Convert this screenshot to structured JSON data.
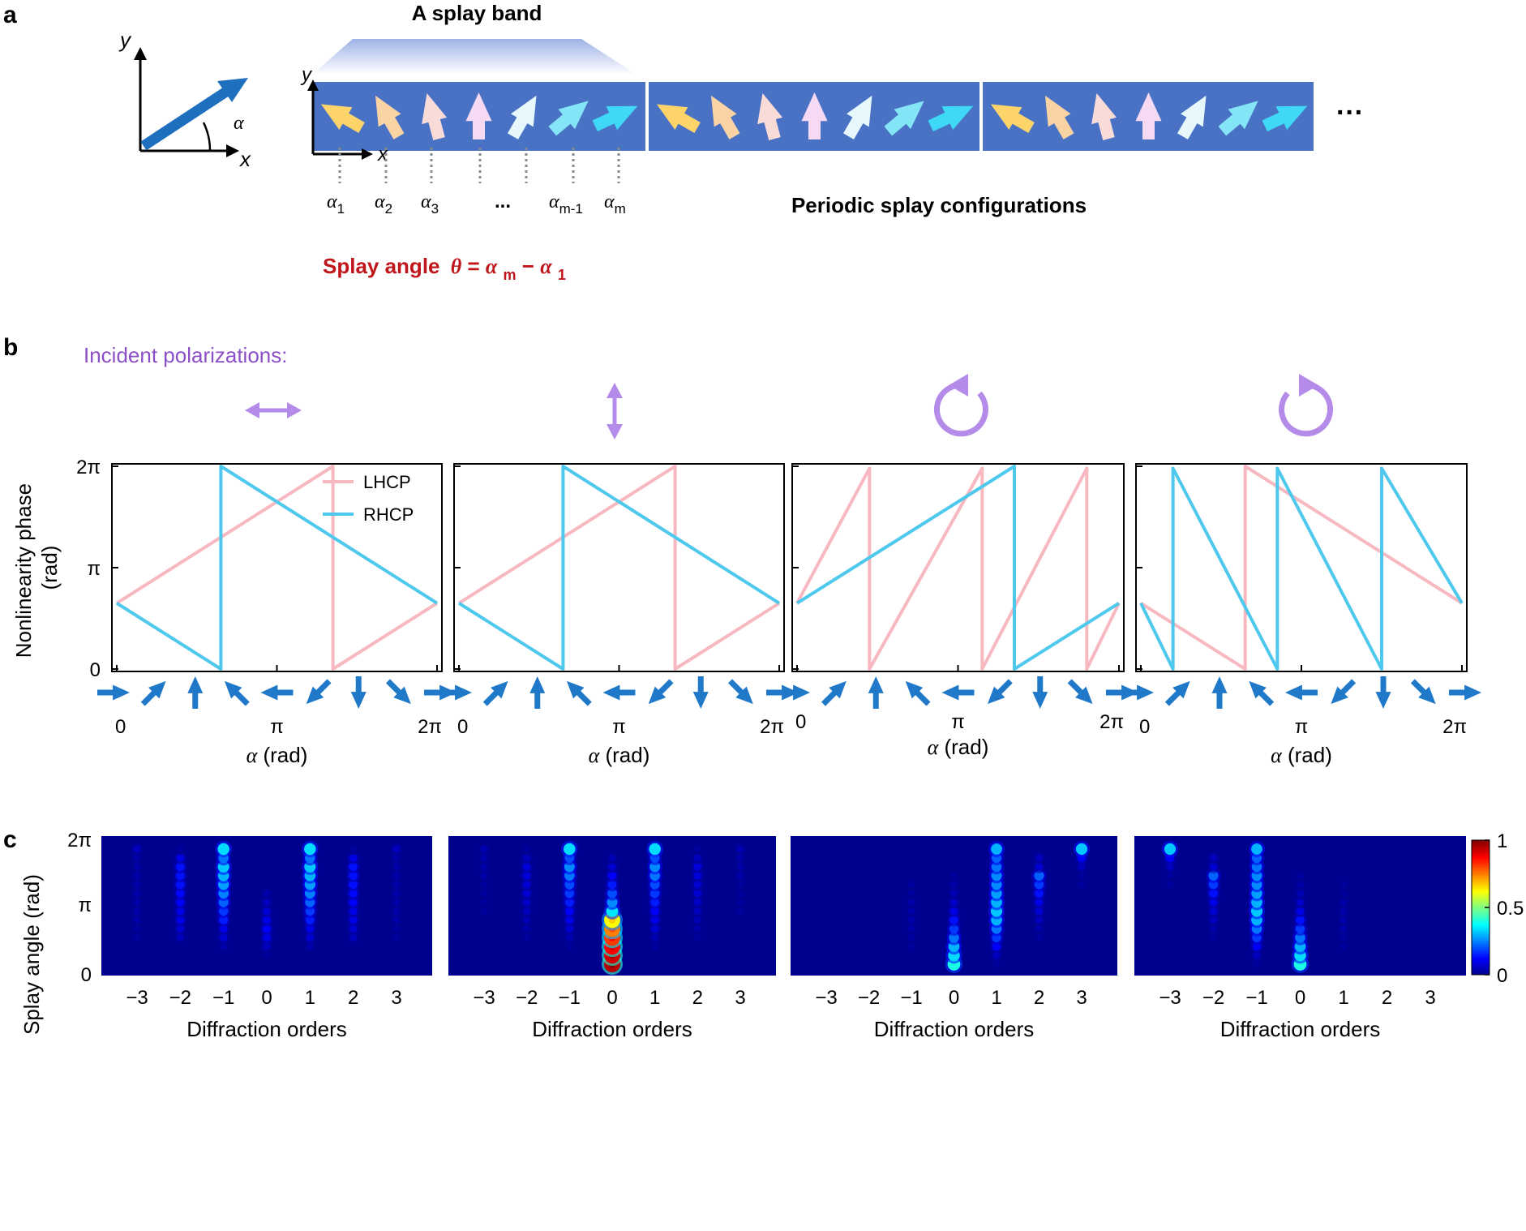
{
  "panel_labels": [
    "a",
    "b",
    "c"
  ],
  "panel_a": {
    "band_title": "A splay band",
    "period_caption": "Periodic splay configurations",
    "ellipsis": "···",
    "axis_inset": {
      "x": "x",
      "y": "y",
      "angle": "α"
    },
    "band_axes": {
      "x": "x",
      "y": "y"
    },
    "alpha_labels": [
      {
        "sym": "α",
        "sub": "1"
      },
      {
        "sym": "α",
        "sub": "2"
      },
      {
        "sym": "α",
        "sub": "3"
      },
      {
        "sym": "...",
        "sub": ""
      },
      {
        "sym": "α",
        "sub": "m-1"
      },
      {
        "sym": "α",
        "sub": "m"
      }
    ],
    "splay_eq": {
      "lead": "Splay angle",
      "theta": "θ",
      "eq": " = ",
      "a1": "α",
      "s1": "m",
      "minus": " − ",
      "a2": "α",
      "s2": "1"
    },
    "arrow_colors": [
      "#fcd46a",
      "#f9d3a3",
      "#f9dcd8",
      "#f6d9f3",
      "#e7f8fc",
      "#84e5f6",
      "#3fd8f6"
    ],
    "band_color": "#4a72c4"
  },
  "panel_b": {
    "incident_title": "Incident polarizations:",
    "polarization_icons": [
      "horizontal-linear",
      "vertical-linear",
      "counterclockwise-circular",
      "clockwise-circular"
    ],
    "ylabel_line1": "Nonlinearity phase",
    "ylabel_line2": "(rad)",
    "yticks": [
      "0",
      "π",
      "2π"
    ],
    "xlabel": "α (rad)",
    "xticks": [
      "0",
      "π",
      "2π"
    ],
    "legend": [
      "LHCP",
      "RHCP"
    ],
    "colors": {
      "LHCP": "#f7b8c0",
      "RHCP": "#4fc8ee",
      "arrows": "#1f78c8",
      "polarization": "#b48be8"
    }
  },
  "panel_c": {
    "ylabel": "Splay angle (rad)",
    "yticks": [
      "0",
      "π",
      "2π"
    ],
    "xlabel": "Diffraction orders",
    "xticks": [
      "−3",
      "−2",
      "−1",
      "0",
      "1",
      "2",
      "3"
    ],
    "colorbar_ticks": [
      "0",
      "0.5",
      "1"
    ],
    "background": "#00008f"
  },
  "chart_data": [
    {
      "type": "line",
      "panel": "b1",
      "x_unit": "rad (multiples of π)",
      "y_unit": "rad (multiples of π)",
      "xlim": [
        0,
        2
      ],
      "ylim": [
        0,
        2
      ],
      "series": [
        {
          "name": "LHCP",
          "x": [
            0,
            1.35,
            1.35,
            2
          ],
          "y": [
            0.65,
            2,
            0,
            0.65
          ]
        },
        {
          "name": "RHCP",
          "x": [
            0,
            0.65,
            0.65,
            2
          ],
          "y": [
            0.65,
            0,
            2,
            0.65
          ]
        }
      ]
    },
    {
      "type": "line",
      "panel": "b2",
      "x_unit": "rad (multiples of π)",
      "y_unit": "rad (multiples of π)",
      "xlim": [
        0,
        2
      ],
      "ylim": [
        0,
        2
      ],
      "series": [
        {
          "name": "LHCP",
          "x": [
            0,
            1.35,
            1.35,
            2
          ],
          "y": [
            0.65,
            2,
            0,
            0.65
          ]
        },
        {
          "name": "RHCP",
          "x": [
            0,
            0.65,
            0.65,
            2
          ],
          "y": [
            0.65,
            0,
            2,
            0.65
          ]
        }
      ]
    },
    {
      "type": "line",
      "panel": "b3",
      "x_unit": "rad (multiples of π)",
      "y_unit": "rad (multiples of π)",
      "xlim": [
        0,
        2
      ],
      "ylim": [
        0,
        2
      ],
      "series": [
        {
          "name": "LHCP",
          "x": [
            0,
            0.45,
            0.45,
            1.15,
            1.15,
            1.8,
            1.8,
            2
          ],
          "y": [
            0.65,
            1.98,
            0,
            1.98,
            0,
            1.98,
            0,
            0.65
          ]
        },
        {
          "name": "RHCP",
          "x": [
            0,
            1.35,
            1.35,
            2
          ],
          "y": [
            0.65,
            2,
            0,
            0.65
          ]
        }
      ]
    },
    {
      "type": "line",
      "panel": "b4",
      "x_unit": "rad (multiples of π)",
      "y_unit": "rad (multiples of π)",
      "xlim": [
        0,
        2
      ],
      "ylim": [
        0,
        2
      ],
      "series": [
        {
          "name": "LHCP",
          "x": [
            0,
            0.65,
            0.65,
            2
          ],
          "y": [
            0.65,
            0,
            2,
            0.65
          ]
        },
        {
          "name": "RHCP",
          "x": [
            0,
            0.2,
            0.2,
            0.85,
            0.85,
            1.5,
            1.5,
            2
          ],
          "y": [
            0.65,
            0,
            1.98,
            0,
            1.98,
            0,
            1.98,
            0.65
          ]
        }
      ]
    },
    {
      "type": "heatmap",
      "panel": "c1",
      "x_values": [
        -3,
        -2,
        -1,
        0,
        1,
        2,
        3
      ],
      "y_unit": "rad (multiples of π)",
      "ylim": [
        0,
        2
      ],
      "rows": 14,
      "intensity_rows_bottom_to_top": [
        [
          0.02,
          0.02,
          0.02,
          0.02,
          0.02,
          0.02,
          0.02
        ],
        [
          0.02,
          0.02,
          0.02,
          0.03,
          0.02,
          0.02,
          0.02
        ],
        [
          0.02,
          0.02,
          0.04,
          0.06,
          0.04,
          0.02,
          0.02
        ],
        [
          0.03,
          0.06,
          0.08,
          0.1,
          0.08,
          0.06,
          0.03
        ],
        [
          0.03,
          0.08,
          0.1,
          0.12,
          0.1,
          0.08,
          0.03
        ],
        [
          0.04,
          0.1,
          0.15,
          0.1,
          0.15,
          0.1,
          0.04
        ],
        [
          0.04,
          0.1,
          0.18,
          0.08,
          0.18,
          0.1,
          0.04
        ],
        [
          0.04,
          0.12,
          0.22,
          0.06,
          0.22,
          0.12,
          0.04
        ],
        [
          0.04,
          0.13,
          0.25,
          0.04,
          0.25,
          0.13,
          0.04
        ],
        [
          0.04,
          0.14,
          0.28,
          0.02,
          0.28,
          0.14,
          0.04
        ],
        [
          0.04,
          0.14,
          0.3,
          0.02,
          0.3,
          0.14,
          0.04
        ],
        [
          0.04,
          0.14,
          0.32,
          0.02,
          0.32,
          0.14,
          0.04
        ],
        [
          0.04,
          0.1,
          0.24,
          0.02,
          0.24,
          0.1,
          0.04
        ],
        [
          0.06,
          0.03,
          0.34,
          0.02,
          0.34,
          0.03,
          0.06
        ]
      ]
    },
    {
      "type": "heatmap",
      "panel": "c2",
      "x_values": [
        -3,
        -2,
        -1,
        0,
        1,
        2,
        3
      ],
      "y_unit": "rad (multiples of π)",
      "ylim": [
        0,
        2
      ],
      "rows": 14,
      "intensity_rows_bottom_to_top": [
        [
          0.01,
          0.01,
          0.01,
          0.95,
          0.01,
          0.01,
          0.01
        ],
        [
          0.01,
          0.01,
          0.02,
          0.92,
          0.02,
          0.01,
          0.01
        ],
        [
          0.01,
          0.02,
          0.03,
          0.88,
          0.03,
          0.02,
          0.01
        ],
        [
          0.02,
          0.03,
          0.05,
          0.82,
          0.05,
          0.03,
          0.02
        ],
        [
          0.02,
          0.04,
          0.08,
          0.75,
          0.08,
          0.04,
          0.02
        ],
        [
          0.02,
          0.05,
          0.1,
          0.62,
          0.1,
          0.05,
          0.02
        ],
        [
          0.03,
          0.06,
          0.12,
          0.35,
          0.12,
          0.06,
          0.03
        ],
        [
          0.03,
          0.07,
          0.15,
          0.26,
          0.15,
          0.07,
          0.03
        ],
        [
          0.03,
          0.08,
          0.18,
          0.2,
          0.18,
          0.08,
          0.03
        ],
        [
          0.03,
          0.08,
          0.2,
          0.15,
          0.2,
          0.08,
          0.03
        ],
        [
          0.04,
          0.09,
          0.24,
          0.12,
          0.24,
          0.09,
          0.04
        ],
        [
          0.04,
          0.09,
          0.26,
          0.08,
          0.26,
          0.09,
          0.04
        ],
        [
          0.04,
          0.06,
          0.2,
          0.05,
          0.2,
          0.06,
          0.04
        ],
        [
          0.05,
          0.03,
          0.34,
          0.02,
          0.34,
          0.03,
          0.05
        ]
      ]
    },
    {
      "type": "heatmap",
      "panel": "c3",
      "x_values": [
        -3,
        -2,
        -1,
        0,
        1,
        2,
        3
      ],
      "y_unit": "rad (multiples of π)",
      "ylim": [
        0,
        2
      ],
      "rows": 14,
      "intensity_rows_bottom_to_top": [
        [
          0.01,
          0.01,
          0.02,
          0.4,
          0.03,
          0.01,
          0.01
        ],
        [
          0.01,
          0.01,
          0.02,
          0.34,
          0.06,
          0.01,
          0.01
        ],
        [
          0.01,
          0.01,
          0.03,
          0.3,
          0.12,
          0.02,
          0.01
        ],
        [
          0.01,
          0.02,
          0.03,
          0.24,
          0.18,
          0.03,
          0.01
        ],
        [
          0.01,
          0.02,
          0.04,
          0.18,
          0.24,
          0.04,
          0.01
        ],
        [
          0.01,
          0.02,
          0.04,
          0.14,
          0.3,
          0.06,
          0.02
        ],
        [
          0.01,
          0.02,
          0.04,
          0.1,
          0.32,
          0.08,
          0.02
        ],
        [
          0.01,
          0.02,
          0.04,
          0.07,
          0.3,
          0.1,
          0.02
        ],
        [
          0.01,
          0.02,
          0.03,
          0.05,
          0.28,
          0.14,
          0.02
        ],
        [
          0.01,
          0.02,
          0.03,
          0.04,
          0.26,
          0.18,
          0.03
        ],
        [
          0.01,
          0.01,
          0.02,
          0.03,
          0.26,
          0.22,
          0.03
        ],
        [
          0.01,
          0.01,
          0.02,
          0.02,
          0.24,
          0.08,
          0.06
        ],
        [
          0.01,
          0.01,
          0.01,
          0.02,
          0.22,
          0.06,
          0.12
        ],
        [
          0.01,
          0.01,
          0.01,
          0.01,
          0.3,
          0.02,
          0.32
        ]
      ]
    },
    {
      "type": "heatmap",
      "panel": "c4",
      "x_values": [
        -3,
        -2,
        -1,
        0,
        1,
        2,
        3
      ],
      "y_unit": "rad (multiples of π)",
      "ylim": [
        0,
        2
      ],
      "rows": 14,
      "intensity_rows_bottom_to_top": [
        [
          0.01,
          0.01,
          0.03,
          0.4,
          0.02,
          0.01,
          0.01
        ],
        [
          0.01,
          0.01,
          0.06,
          0.34,
          0.02,
          0.01,
          0.01
        ],
        [
          0.01,
          0.02,
          0.12,
          0.3,
          0.03,
          0.01,
          0.01
        ],
        [
          0.01,
          0.03,
          0.18,
          0.24,
          0.03,
          0.02,
          0.01
        ],
        [
          0.01,
          0.04,
          0.24,
          0.18,
          0.04,
          0.02,
          0.01
        ],
        [
          0.02,
          0.06,
          0.3,
          0.14,
          0.04,
          0.02,
          0.01
        ],
        [
          0.02,
          0.08,
          0.32,
          0.1,
          0.04,
          0.02,
          0.01
        ],
        [
          0.02,
          0.1,
          0.3,
          0.07,
          0.04,
          0.02,
          0.01
        ],
        [
          0.02,
          0.14,
          0.28,
          0.05,
          0.03,
          0.02,
          0.01
        ],
        [
          0.03,
          0.18,
          0.26,
          0.04,
          0.03,
          0.02,
          0.01
        ],
        [
          0.03,
          0.22,
          0.26,
          0.03,
          0.02,
          0.01,
          0.01
        ],
        [
          0.06,
          0.08,
          0.24,
          0.02,
          0.02,
          0.01,
          0.01
        ],
        [
          0.12,
          0.06,
          0.22,
          0.02,
          0.01,
          0.01,
          0.01
        ],
        [
          0.32,
          0.02,
          0.3,
          0.01,
          0.01,
          0.01,
          0.01
        ]
      ]
    }
  ]
}
